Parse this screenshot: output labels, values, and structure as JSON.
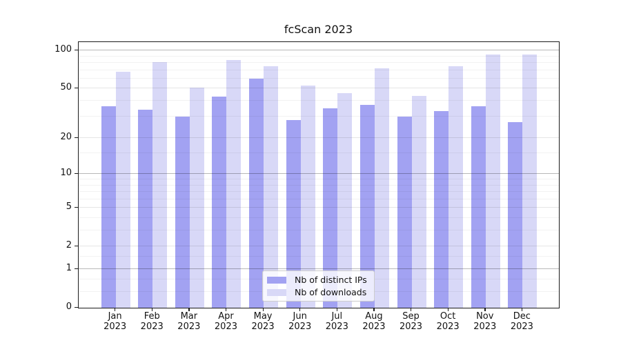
{
  "chart_data": {
    "type": "bar",
    "title": "fcScan 2023",
    "categories": [
      "Jan",
      "Feb",
      "Mar",
      "Apr",
      "May",
      "Jun",
      "Jul",
      "Aug",
      "Sep",
      "Oct",
      "Nov",
      "Dec"
    ],
    "x_tick_second_line": "2023",
    "series": [
      {
        "name": "Nb of distinct IPs",
        "color": "#a2a2f2",
        "values": [
          36,
          34,
          30,
          43,
          60,
          28,
          35,
          37,
          30,
          33,
          36,
          27
        ]
      },
      {
        "name": "Nb of downloads",
        "color": "#d8d8f7",
        "values": [
          68,
          81,
          51,
          84,
          75,
          53,
          46,
          72,
          44,
          75,
          93,
          93
        ]
      }
    ],
    "y_axis": {
      "scale": "log1p",
      "ticks": [
        0,
        1,
        2,
        5,
        10,
        20,
        50,
        100
      ],
      "decade_lines": [
        1,
        10,
        100
      ],
      "minor_gridlines": [
        0.33,
        0.67,
        1.5,
        3,
        4,
        6,
        7,
        8,
        9,
        15,
        30,
        40,
        60,
        70,
        80,
        90
      ],
      "ymax": 116
    },
    "legend": {
      "position": "lower center"
    },
    "grid": true,
    "colors": {
      "spine": "#1a1a1a",
      "grid_decade": "rgba(0,0,0,0.28)",
      "grid_major": "rgba(0,0,0,0.10)",
      "grid_minor": "rgba(0,0,0,0.05)"
    }
  }
}
